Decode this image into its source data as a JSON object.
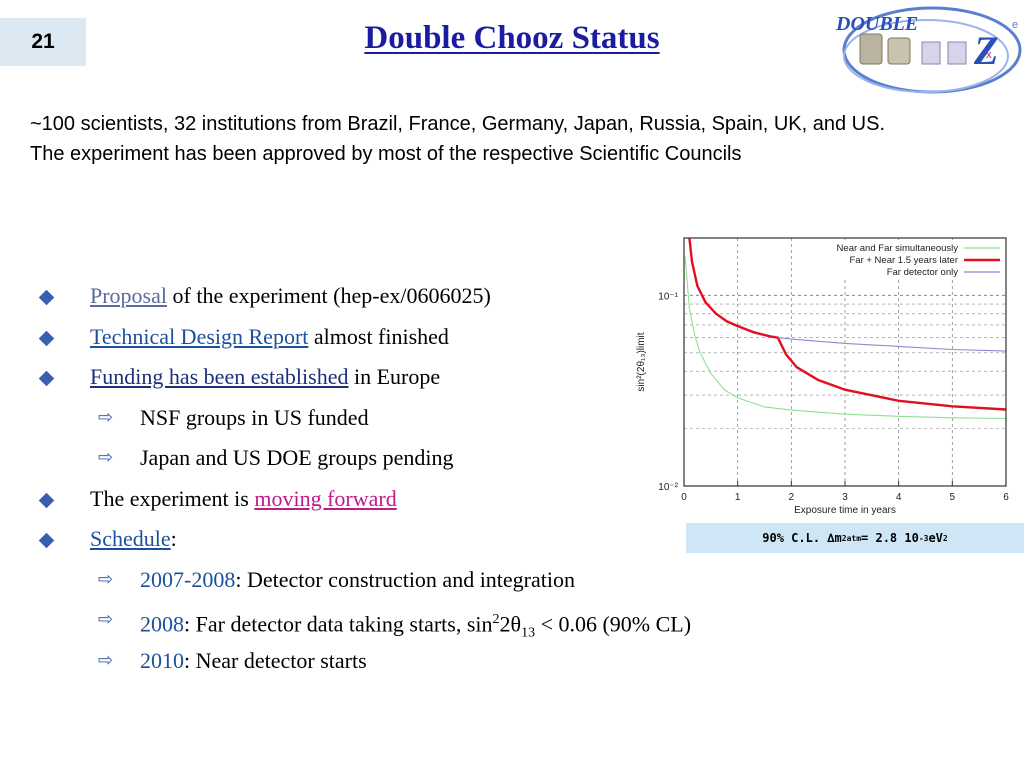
{
  "slide_number": "21",
  "title": "Double Chooz Status",
  "logo_text": "DOUBLE",
  "intro": [
    "~100 scientists, 32 institutions from Brazil, France, Germany, Japan, Russia, Spain, UK, and US.",
    "The experiment has been approved by most of the respective Scientific Councils"
  ],
  "bullets": {
    "b1_link": "Proposal",
    "b1_rest": " of the experiment (hep-ex/0606025)",
    "b2_link": "Technical Design Report",
    "b2_rest": " almost finished",
    "b3_link": "Funding has been established",
    "b3_rest": " in Europe",
    "s1": "NSF groups in US funded",
    "s2": "Japan and US DOE groups pending",
    "b4_pre": "The experiment is ",
    "b4_link": "moving forward",
    "b5_link": "Schedule",
    "b5_rest": ":",
    "s3_year": "2007-2008",
    "s3_rest": ": Detector construction and integration",
    "s4_year": "2008",
    "s4_rest_a": ": Far detector data taking starts, sin",
    "s4_sup": "2",
    "s4_mid": "2θ",
    "s4_sub": "13",
    "s4_rest_b": " < 0.06 (90% CL)",
    "s5_year": "2010",
    "s5_rest": ": Near detector starts"
  },
  "caption": {
    "pre": "90% C.L. ",
    "dm": "∆m",
    "sup2": "2",
    "sub": "atm",
    "mid": " = 2.8 10",
    "sup_exp": "-3",
    "unit": " eV",
    "sup_unit": "2"
  },
  "colors": {
    "title": "#1c1ca0",
    "bullet": "#3a5fb0",
    "link_blue": "#1c4f9c",
    "link_magenta": "#c0198c",
    "caption_bg": "#cfe6f6"
  },
  "chart_data": {
    "type": "line",
    "xlabel": "Exposure time in years",
    "ylabel": "sin²(2θ₁₃)limit",
    "x_ticks": [
      0,
      1,
      2,
      3,
      4,
      5,
      6
    ],
    "y_ticks": [
      "10⁻²",
      "10⁻¹"
    ],
    "xlim": [
      0,
      6
    ],
    "ylim": [
      0.01,
      0.2
    ],
    "y_scale": "log",
    "grid": true,
    "legend_position": "top-right",
    "series": [
      {
        "name": "Near and Far simultaneously",
        "color": "#90e090",
        "x": [
          0.02,
          0.1,
          0.2,
          0.3,
          0.5,
          0.75,
          1.0,
          1.5,
          2.0,
          3.0,
          4.0,
          5.0,
          6.0
        ],
        "y": [
          0.16,
          0.085,
          0.062,
          0.05,
          0.039,
          0.032,
          0.029,
          0.026,
          0.025,
          0.0238,
          0.0232,
          0.0228,
          0.0226
        ]
      },
      {
        "name": "Far + Near 1.5 years later",
        "color": "#e01020",
        "x": [
          0.1,
          0.15,
          0.25,
          0.4,
          0.6,
          0.8,
          1.0,
          1.3,
          1.6,
          1.75,
          1.9,
          2.1,
          2.5,
          3.0,
          4.0,
          5.0,
          6.0
        ],
        "y": [
          0.2,
          0.15,
          0.112,
          0.092,
          0.08,
          0.073,
          0.069,
          0.064,
          0.061,
          0.06,
          0.049,
          0.042,
          0.036,
          0.032,
          0.028,
          0.0262,
          0.0252
        ]
      },
      {
        "name": "Far detector only",
        "color": "#8a8ad8",
        "x": [
          1.75,
          2.0,
          3.0,
          4.0,
          5.0,
          6.0
        ],
        "y": [
          0.06,
          0.059,
          0.056,
          0.054,
          0.052,
          0.051
        ]
      }
    ]
  }
}
